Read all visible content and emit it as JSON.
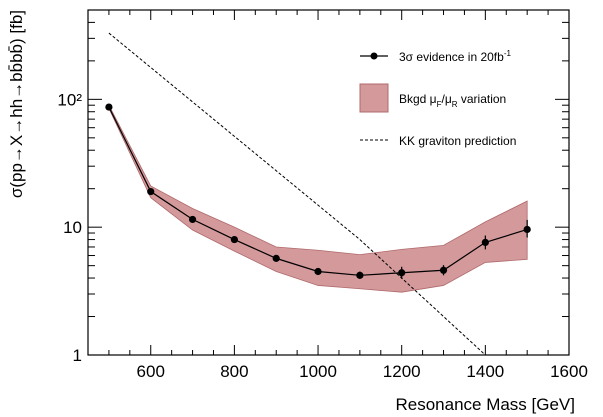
{
  "chart_data": {
    "type": "line",
    "xlabel": "Resonance Mass [GeV]",
    "ylabel": "σ(pp→X→hh→bb̄bb̄) [fb]",
    "xlim": [
      450,
      1600
    ],
    "ylim": [
      1,
      500
    ],
    "y_scale": "log",
    "x_ticks": [
      600,
      800,
      1000,
      1200,
      1400,
      1600
    ],
    "x_tick_labels": [
      "600",
      "800",
      "1000",
      "1200",
      "1400",
      "1600"
    ],
    "y_ticks": [
      1,
      10,
      100
    ],
    "y_tick_labels": [
      "1",
      "10",
      "10²"
    ],
    "grid": false,
    "legend_position": "top-right",
    "series": [
      {
        "name": "3σ evidence in 20fb⁻¹",
        "style": "black line with filled circle markers and error bars",
        "color": "#000000",
        "x": [
          500,
          600,
          700,
          800,
          900,
          1000,
          1100,
          1200,
          1300,
          1400,
          1500
        ],
        "y": [
          87,
          19,
          11.5,
          8.0,
          5.7,
          4.5,
          4.2,
          4.4,
          4.6,
          7.6,
          9.6
        ],
        "y_err_low": [
          0,
          0,
          0,
          0,
          0,
          0,
          0.25,
          0.45,
          0.4,
          0.9,
          1.3
        ],
        "y_err_high": [
          0,
          0,
          0,
          0,
          0,
          0,
          0.3,
          0.5,
          0.45,
          1.0,
          1.8
        ]
      },
      {
        "name": "Bkgd μF/μR variation",
        "style": "filled band",
        "color": "#d3999b",
        "edge_color": "#b06a6c",
        "x": [
          500,
          600,
          700,
          800,
          900,
          1000,
          1100,
          1200,
          1300,
          1400,
          1500
        ],
        "low": [
          85,
          17,
          9.5,
          6.5,
          4.5,
          3.5,
          3.3,
          3.1,
          3.5,
          5.3,
          5.6
        ],
        "high": [
          90,
          21,
          14,
          10,
          7.0,
          6.6,
          6.1,
          6.7,
          7.2,
          11,
          16
        ]
      },
      {
        "name": "KK graviton prediction",
        "style": "dashed line",
        "color": "#000000",
        "x": [
          500,
          1100,
          1400
        ],
        "y": [
          330,
          8.0,
          1.0
        ]
      }
    ],
    "legend": {
      "evidence_label": "3σ evidence in 20fb",
      "evidence_sup": "-1",
      "band_label": "Bkgd μ",
      "band_sub1": "F",
      "band_slash": "/μ",
      "band_sub2": "R",
      "band_tail": " variation",
      "graviton_label": "KK graviton prediction"
    }
  }
}
